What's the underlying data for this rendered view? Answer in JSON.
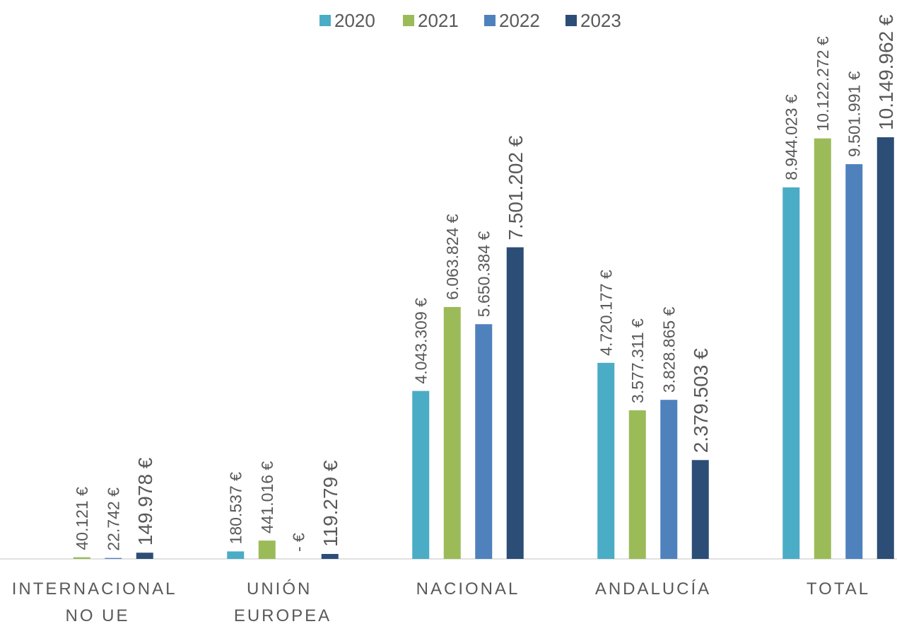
{
  "chart_data": {
    "type": "bar",
    "categories": [
      "INTERNACIONAL NO UE",
      "UNIÓN EUROPEA",
      "NACIONAL",
      "ANDALUCÍA",
      "TOTAL"
    ],
    "series": [
      {
        "name": "2020",
        "color": "#4bacc6",
        "values": [
          null,
          180537,
          4043309,
          4720177,
          8944023
        ],
        "value_labels": [
          null,
          "180.537 €",
          "4.043.309 €",
          "4.720.177 €",
          "8.944.023 €"
        ]
      },
      {
        "name": "2021",
        "color": "#9bbb59",
        "values": [
          40121,
          441016,
          6063824,
          3577311,
          10122272
        ],
        "value_labels": [
          "40.121 €",
          "441.016 €",
          "6.063.824 €",
          "3.577.311 €",
          "10.122.272 €"
        ]
      },
      {
        "name": "2022",
        "color": "#4f81bd",
        "values": [
          22742,
          0,
          5650384,
          3828865,
          9501991
        ],
        "value_labels": [
          "22.742 €",
          "-   €",
          "5.650.384 €",
          "3.828.865 €",
          "9.501.991 €"
        ]
      },
      {
        "name": "2023",
        "color": "#2c4d75",
        "values": [
          149978,
          119279,
          7501202,
          2379503,
          10149962
        ],
        "value_labels": [
          "149.978 €",
          "119.279 €",
          "7.501.202 €",
          "2.379.503 €",
          "10.149.962 €"
        ]
      }
    ],
    "legend": "top"
  }
}
